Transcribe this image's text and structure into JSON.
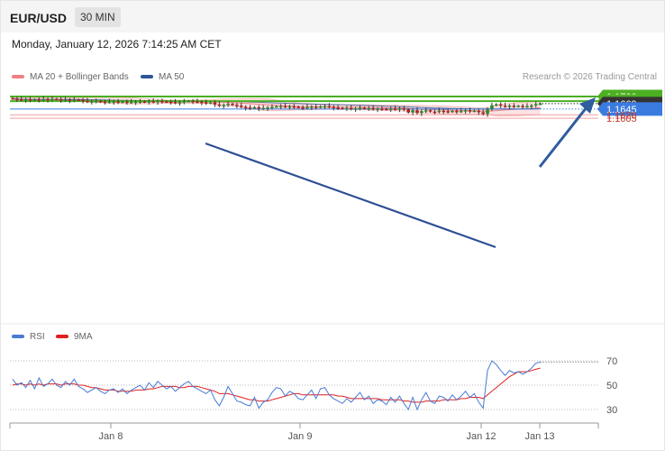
{
  "header": {
    "symbol": "EUR/USD",
    "timeframe": "30 MIN",
    "datetime": "Monday, January 12, 2026 7:14:25 AM CET"
  },
  "legend": {
    "bollinger": "MA 20 + Bollinger Bands",
    "ma50": "MA 50",
    "credit": "Research © 2026 Trading Central"
  },
  "rsi_legend": {
    "rsi": "RSI",
    "ma9": "9MA"
  },
  "colors": {
    "candle_up": "#2e8b2e",
    "candle_down": "#b22222",
    "bollinger": "#f08080",
    "bollinger_fill": "#fde3e3",
    "ma50": "#2f5597",
    "resistance": "#4caf22",
    "support": "#f0a0a0",
    "pivot": "#3a7be0",
    "current": "#333333",
    "rsi": "#4a7bd0",
    "rsi_ma": "#e02020"
  },
  "chart_data": [
    {
      "type": "candlestick",
      "title": "EUR/USD",
      "timeframe": "30 MIN",
      "ylim": [
        1.1598,
        1.1712
      ],
      "x_ticks": [
        "Jan 8",
        "Jan 9",
        "Jan 12",
        "Jan 13"
      ],
      "levels": [
        {
          "label": "1.1700",
          "value": 1.17,
          "role": "resistance"
        },
        {
          "label": "1.1680",
          "value": 1.168,
          "role": "resistance"
        },
        {
          "label": "1.1669",
          "value": 1.1669,
          "role": "current"
        },
        {
          "label": "1.1645",
          "value": 1.1645,
          "role": "pivot"
        },
        {
          "label": "1.1620",
          "value": 1.162,
          "role": "support"
        },
        {
          "label": "1.1605",
          "value": 1.1605,
          "role": "support"
        }
      ],
      "closes": [
        1.169,
        1.1688,
        1.1686,
        1.1688,
        1.1684,
        1.1687,
        1.1685,
        1.1689,
        1.1687,
        1.169,
        1.1688,
        1.1684,
        1.1686,
        1.1684,
        1.1686,
        1.1685,
        1.1681,
        1.1678,
        1.1679,
        1.168,
        1.1677,
        1.1676,
        1.1677,
        1.1678,
        1.1676,
        1.1677,
        1.1675,
        1.1676,
        1.1677,
        1.1678,
        1.1676,
        1.1679,
        1.1677,
        1.168,
        1.1678,
        1.1677,
        1.1676,
        1.1673,
        1.1675,
        1.1679,
        1.168,
        1.1678,
        1.1677,
        1.1675,
        1.1672,
        1.1674,
        1.1665,
        1.166,
        1.1663,
        1.1668,
        1.1664,
        1.166,
        1.1655,
        1.1652,
        1.165,
        1.1653,
        1.1647,
        1.165,
        1.1652,
        1.1655,
        1.1657,
        1.1658,
        1.1656,
        1.1657,
        1.1655,
        1.1653,
        1.1652,
        1.1654,
        1.1656,
        1.1653,
        1.1657,
        1.1658,
        1.1655,
        1.1652,
        1.165,
        1.1648,
        1.165,
        1.1646,
        1.1648,
        1.1651,
        1.1648,
        1.1649,
        1.1645,
        1.1647,
        1.1646,
        1.1644,
        1.1647,
        1.1645,
        1.1648,
        1.1644,
        1.163,
        1.164,
        1.1628,
        1.1636,
        1.164,
        1.1634,
        1.1633,
        1.1638,
        1.1636,
        1.1634,
        1.1637,
        1.1635,
        1.1637,
        1.164,
        1.1636,
        1.1638,
        1.1631,
        1.1624,
        1.1646,
        1.1662,
        1.1666,
        1.166,
        1.1657,
        1.166,
        1.1658,
        1.1659,
        1.1657,
        1.1658,
        1.1661,
        1.1667,
        1.1669
      ],
      "overlays": [
        "MA 20 + Bollinger Bands",
        "MA 50"
      ],
      "trendline": "descending",
      "arrow": "up toward 1.1700"
    },
    {
      "type": "line",
      "title": "RSI",
      "series": [
        {
          "name": "RSI"
        },
        {
          "name": "9MA"
        }
      ],
      "ylim": [
        25,
        75
      ],
      "y_ticks": [
        "70",
        "50",
        "30"
      ],
      "rsi": [
        55,
        50,
        52,
        48,
        54,
        47,
        56,
        49,
        51,
        55,
        50,
        48,
        53,
        50,
        55,
        49,
        47,
        44,
        46,
        48,
        45,
        43,
        46,
        47,
        44,
        47,
        43,
        46,
        48,
        50,
        46,
        52,
        48,
        53,
        50,
        47,
        49,
        45,
        48,
        51,
        53,
        49,
        47,
        45,
        43,
        46,
        38,
        33,
        40,
        49,
        43,
        37,
        36,
        34,
        33,
        40,
        31,
        36,
        38,
        44,
        48,
        47,
        41,
        45,
        43,
        39,
        38,
        42,
        46,
        39,
        47,
        48,
        42,
        39,
        37,
        35,
        39,
        36,
        40,
        44,
        38,
        41,
        35,
        38,
        37,
        34,
        40,
        36,
        41,
        35,
        30,
        40,
        30,
        38,
        44,
        37,
        35,
        41,
        40,
        37,
        42,
        38,
        41,
        45,
        40,
        43,
        36,
        31,
        62,
        70,
        67,
        62,
        58,
        62,
        60,
        61,
        59,
        61,
        64,
        68,
        69
      ],
      "rsi_ma": [
        50,
        51,
        51,
        50,
        51,
        50,
        51,
        50,
        51,
        51,
        51,
        50,
        51,
        51,
        51,
        50,
        50,
        49,
        48,
        48,
        47,
        46,
        46,
        46,
        45,
        45,
        45,
        45,
        46,
        46,
        46,
        47,
        47,
        48,
        49,
        49,
        49,
        49,
        48,
        48,
        49,
        49,
        49,
        48,
        47,
        46,
        45,
        43,
        43,
        43,
        42,
        41,
        40,
        39,
        38,
        38,
        37,
        37,
        37,
        38,
        39,
        40,
        41,
        42,
        43,
        43,
        42,
        42,
        42,
        42,
        42,
        42,
        42,
        42,
        41,
        41,
        40,
        39,
        39,
        39,
        39,
        39,
        39,
        39,
        38,
        38,
        38,
        38,
        38,
        37,
        37,
        36,
        36,
        36,
        37,
        37,
        37,
        37,
        38,
        38,
        38,
        38,
        39,
        39,
        40,
        40,
        40,
        39,
        42,
        45,
        48,
        51,
        54,
        57,
        59,
        61,
        61,
        61,
        62,
        63,
        64
      ]
    }
  ]
}
